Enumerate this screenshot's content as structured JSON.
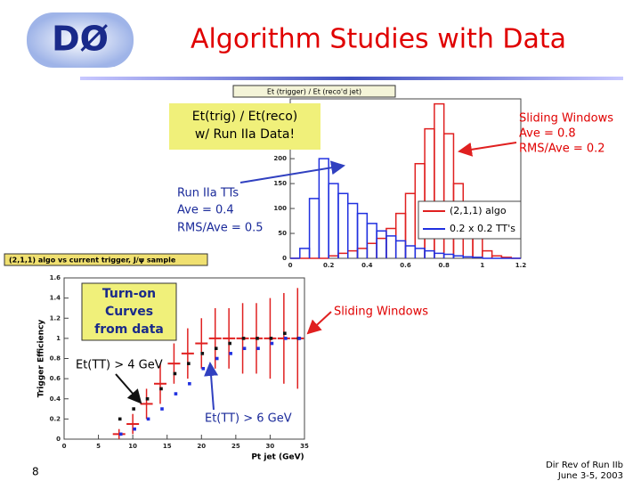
{
  "header": {
    "logo": "DØ",
    "title": "Algorithm Studies with Data"
  },
  "plot1": {
    "type": "histogram",
    "title": "Et (trigger) / Et (reco'd jet)",
    "bins": [
      0,
      0.05,
      0.1,
      0.15,
      0.2,
      0.25,
      0.3,
      0.35,
      0.4,
      0.45,
      0.5,
      0.55,
      0.6,
      0.65,
      0.7,
      0.75,
      0.8,
      0.85,
      0.9,
      0.95,
      1,
      1.05,
      1.1,
      1.15,
      1.2
    ],
    "series": [
      {
        "name": "(2,1,1) algo",
        "color": "#e02020",
        "values": [
          0,
          0,
          0,
          0,
          5,
          10,
          15,
          20,
          30,
          40,
          60,
          90,
          130,
          190,
          260,
          310,
          250,
          150,
          80,
          40,
          15,
          5,
          2,
          0
        ]
      },
      {
        "name": "0.2 x 0.2 TT's",
        "color": "#2030e0",
        "values": [
          0,
          20,
          120,
          200,
          150,
          130,
          110,
          90,
          70,
          55,
          45,
          35,
          25,
          20,
          15,
          10,
          8,
          5,
          3,
          2,
          0,
          0,
          0,
          0
        ]
      }
    ],
    "xlim": [
      0,
      1.2
    ],
    "ylim": [
      0,
      320
    ],
    "xticks": [
      0,
      0.2,
      0.4,
      0.6,
      0.8,
      1,
      1.2
    ],
    "yticks": [
      0,
      50,
      100,
      150,
      200
    ]
  },
  "annotations": {
    "reco_box": [
      "Et(trig) / Et(reco)",
      "w/ Run IIa Data!"
    ],
    "sliding": [
      "Sliding Windows",
      "Ave = 0.8",
      "RMS/Ave = 0.2"
    ],
    "tts": [
      "Run IIa TTs",
      "Ave = 0.4",
      "RMS/Ave = 0.5"
    ],
    "turnon": [
      "Turn-on",
      "Curves",
      "from data"
    ],
    "sliding2": "Sliding Windows",
    "et4": "Et(TT) > 4 GeV",
    "et6": "Et(TT) > 6 GeV"
  },
  "plot2": {
    "type": "scatter",
    "title": "(2,1,1) algo vs current trigger, J/ψ sample",
    "xlabel": "Pt jet (GeV)",
    "ylabel": "Trigger Efficiency",
    "x": [
      8,
      10,
      12,
      14,
      16,
      18,
      20,
      22,
      24,
      26,
      28,
      30,
      32,
      34
    ],
    "series": [
      {
        "color": "#e02020",
        "values": [
          0.05,
          0.15,
          0.35,
          0.55,
          0.75,
          0.85,
          0.95,
          1.0,
          1.0,
          1.0,
          1.0,
          1.0,
          1.0,
          1.0
        ],
        "errors": [
          0.05,
          0.1,
          0.15,
          0.2,
          0.2,
          0.25,
          0.25,
          0.3,
          0.3,
          0.35,
          0.35,
          0.4,
          0.45,
          0.5
        ]
      },
      {
        "color": "#111111",
        "values": [
          0.2,
          0.3,
          0.4,
          0.5,
          0.65,
          0.75,
          0.85,
          0.9,
          0.95,
          1.0,
          1.0,
          1.0,
          1.05,
          1.0
        ]
      },
      {
        "color": "#2030e0",
        "values": [
          0.05,
          0.1,
          0.2,
          0.3,
          0.45,
          0.55,
          0.7,
          0.8,
          0.85,
          0.9,
          0.9,
          0.95,
          1.0,
          1.0
        ]
      }
    ],
    "xlim": [
      0,
      35
    ],
    "ylim": [
      0,
      1.6
    ],
    "xticks": [
      0,
      5,
      10,
      15,
      20,
      25,
      30,
      35
    ],
    "yticks": [
      0,
      0.2,
      0.4,
      0.6,
      0.8,
      1,
      1.2,
      1.4,
      1.6
    ]
  },
  "footer": {
    "page": "8",
    "lines": [
      "Dir Rev of Run IIb",
      "June 3-5, 2003"
    ]
  }
}
